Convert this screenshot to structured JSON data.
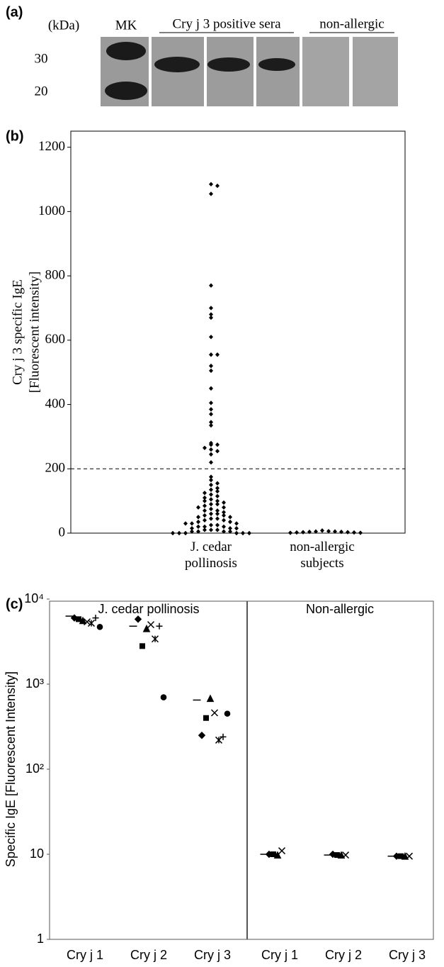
{
  "panel_a": {
    "label": "(a)",
    "unit": "(kDa)",
    "marker_lane": "MK",
    "groups": [
      "Cry j 3 positive sera",
      "non-allergic"
    ],
    "mw": [
      30,
      20
    ]
  },
  "chart_data": [
    {
      "type": "strip",
      "panel_label": "(b)",
      "ylabel": [
        "Cry j 3 specific IgE",
        "[Fluorescent intensity]"
      ],
      "categories": [
        "J. cedar pollinosis",
        "non-allergic subjects"
      ],
      "color": "#000000",
      "values": [
        [
          1085,
          1080,
          1055,
          770,
          700,
          680,
          670,
          610,
          555,
          555,
          520,
          505,
          450,
          405,
          385,
          370,
          345,
          335,
          280,
          275,
          275,
          265,
          260,
          255,
          245,
          220,
          175,
          165,
          155,
          150,
          140,
          135,
          130,
          125,
          120,
          115,
          110,
          105,
          100,
          100,
          95,
          90,
          90,
          85,
          80,
          80,
          75,
          70,
          70,
          65,
          60,
          60,
          55,
          55,
          50,
          50,
          45,
          45,
          40,
          40,
          35,
          35,
          30,
          30,
          30,
          25,
          25,
          20,
          20,
          20,
          15,
          15,
          15,
          10,
          10,
          10,
          5,
          5,
          5,
          5,
          0,
          0,
          0,
          0,
          0,
          0
        ],
        [
          8,
          6,
          5,
          5,
          4,
          4,
          3,
          3,
          2,
          2,
          1,
          1
        ]
      ],
      "threshold": 200,
      "ylim": [
        0,
        1250
      ],
      "yticks": [
        0,
        200,
        400,
        600,
        800,
        1000,
        1200
      ]
    },
    {
      "type": "log-strip",
      "panel_label": "(c)",
      "ylabel": "Specific IgE [Fluorescent Intensity]",
      "groups": [
        "J. cedar pollinosis",
        "Non-allergic"
      ],
      "categories": [
        "Cry j 1",
        "Cry j 2",
        "Cry j 3",
        "Cry j 1",
        "Cry j 2",
        "Cry j 3"
      ],
      "log_y": true,
      "ylim": [
        1,
        10000
      ],
      "yticks": [
        1,
        10,
        {
          "value": 100,
          "label": "10²"
        },
        {
          "value": 1000,
          "label": "10³"
        },
        {
          "value": 10000,
          "label": "10⁴"
        }
      ],
      "series": [
        {
          "marker": "dash",
          "color": "#000000",
          "values": [
            6300,
            4800,
            650,
            10,
            9.8,
            9.5
          ]
        },
        {
          "marker": "diamond",
          "color": "#000000",
          "values": [
            6000,
            5800,
            250,
            10,
            10,
            9.5
          ]
        },
        {
          "marker": "square",
          "color": "#000000",
          "values": [
            5800,
            2800,
            400,
            10,
            9.8,
            9.5
          ]
        },
        {
          "marker": "triangle",
          "color": "#000000",
          "values": [
            5600,
            4500,
            680,
            9.8,
            9.8,
            9.5
          ]
        },
        {
          "marker": "cross",
          "color": "#000000",
          "values": [
            5400,
            5000,
            460,
            11,
            9.8,
            9.5
          ]
        },
        {
          "marker": "asterisk",
          "color": "#000000",
          "values": [
            5200,
            3400,
            220,
            null,
            null,
            null
          ]
        },
        {
          "marker": "plus",
          "color": "#000000",
          "values": [
            6000,
            4800,
            240,
            null,
            null,
            null
          ]
        },
        {
          "marker": "circle",
          "color": "#000000",
          "values": [
            4700,
            700,
            450,
            null,
            null,
            null
          ]
        }
      ]
    }
  ]
}
